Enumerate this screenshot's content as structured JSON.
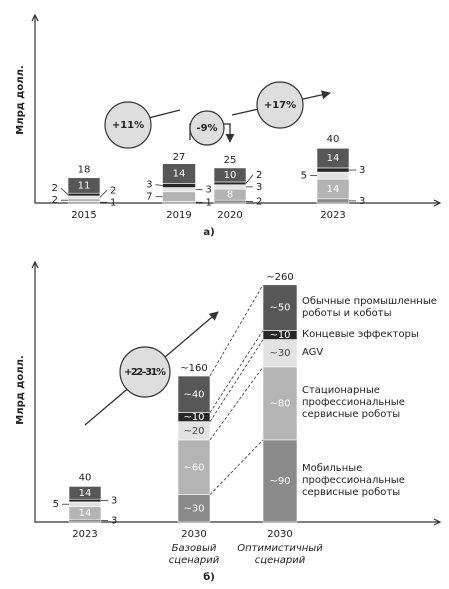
{
  "chart_data": [
    {
      "type": "bar",
      "stacked": true,
      "ylabel": "Млрд долл.",
      "xlabel": "а)",
      "categories": [
        "2015",
        "2019",
        "2020",
        "2023"
      ],
      "ylim": [
        0,
        134
      ],
      "series": [
        {
          "color": "#8a8a8a",
          "values": [
            1,
            1,
            2,
            3
          ]
        },
        {
          "color": "#b4b4b4",
          "values": [
            2,
            7,
            8,
            14
          ]
        },
        {
          "color": "#e2e2e2",
          "values": [
            2,
            3,
            3,
            5
          ]
        },
        {
          "color": "#262626",
          "values": [
            2,
            3,
            2,
            3
          ]
        },
        {
          "color": "#575757",
          "values": [
            11,
            14,
            10,
            14
          ]
        }
      ],
      "totals": [
        18,
        27,
        25,
        40
      ],
      "annotations": [
        "+11%",
        "-9%",
        "+17%"
      ]
    },
    {
      "type": "bar",
      "stacked": true,
      "ylabel": "Млрд долл.",
      "xlabel": "б)",
      "categories": [
        "2023",
        "2030",
        "2030"
      ],
      "subcategories": [
        null,
        "Базовый сценарий",
        "Оптимистичный сценарий"
      ],
      "ylim": [
        0,
        285
      ],
      "series": [
        {
          "name": "Мобильные профессиональные сервисные роботы",
          "color": "#8a8a8a",
          "values": [
            3,
            30,
            90
          ],
          "value_labels": [
            "3",
            "~30",
            "~90"
          ]
        },
        {
          "name": "Стационарные профессиональные сервисные роботы",
          "color": "#b4b4b4",
          "values": [
            14,
            60,
            80
          ],
          "value_labels": [
            "14",
            "~60",
            "~80"
          ]
        },
        {
          "name": "AGV",
          "color": "#e2e2e2",
          "values": [
            5,
            20,
            30
          ],
          "value_labels": [
            "5",
            "~20",
            "~30"
          ]
        },
        {
          "name": "Концевые эффекторы",
          "color": "#262626",
          "values": [
            3,
            10,
            10
          ],
          "value_labels": [
            "3",
            "~10",
            "~10"
          ]
        },
        {
          "name": "Обычные промышленные роботы и коботы",
          "color": "#575757",
          "values": [
            14,
            40,
            50
          ],
          "value_labels": [
            "14",
            "~40",
            "~50"
          ]
        }
      ],
      "totals": [
        40,
        160,
        260
      ],
      "total_labels": [
        "40",
        "~160",
        "~260"
      ],
      "annotations": [
        "+22–31%"
      ]
    }
  ]
}
